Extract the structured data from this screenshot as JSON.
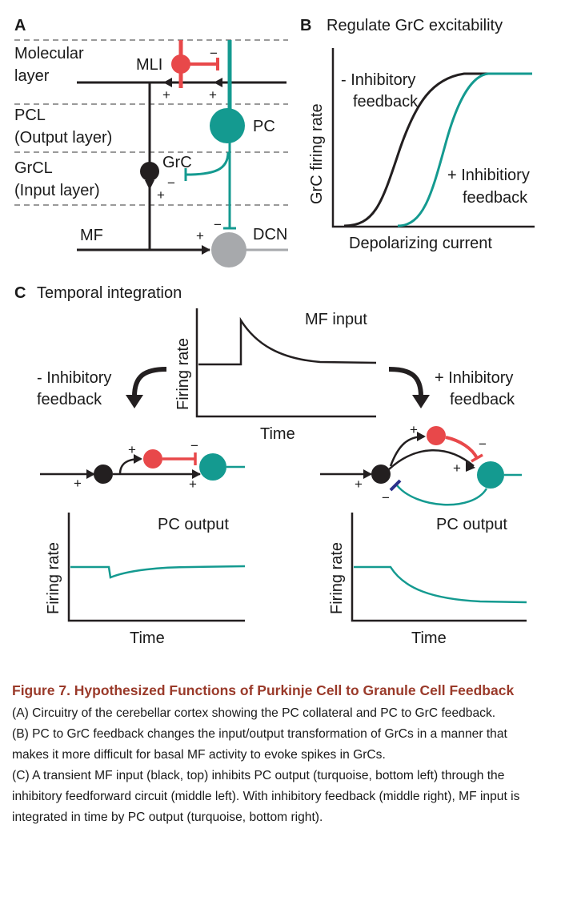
{
  "panelA": {
    "letter": "A",
    "layers": [
      "Molecular",
      "layer",
      "PCL",
      "(Output layer)",
      "GrCL",
      "(Input layer)"
    ],
    "cells": {
      "mli": "MLI",
      "pc": "PC",
      "grc": "GrC",
      "mf": "MF",
      "dcn": "DCN"
    },
    "signs": {
      "plus": "+",
      "minus": "−"
    }
  },
  "panelB": {
    "letter": "B",
    "title": "Regulate GrC excitability",
    "ylabel": "GrC firing rate",
    "xlabel": "Depolarizing current",
    "curve_minus": [
      "- Inhibitory",
      "feedback"
    ],
    "curve_plus": [
      "+ Inhibitiory",
      "feedback"
    ]
  },
  "panelC": {
    "letter": "C",
    "title": "Temporal integration",
    "mf_label": "MF input",
    "ylabel": "Firing rate",
    "xlabel": "Time",
    "left_branch": [
      "- Inhibitory",
      "feedback"
    ],
    "right_branch": [
      "+ Inhibitory",
      "feedback"
    ],
    "output_label": "PC output"
  },
  "colors": {
    "mli": "#e8484a",
    "pc": "#149a90",
    "grc": "#231f20",
    "dcn": "#a7a9ac",
    "title": "#9a3a2a",
    "feedback_synapse": "#2b2f8a"
  },
  "caption": {
    "title": "Figure 7. Hypothesized Functions of Purkinje Cell to Granule Cell Feedback",
    "a": "(A) Circuitry of the cerebellar cortex showing the PC collateral and PC to GrC feedback.",
    "b": "(B) PC to GrC feedback changes the input/output transformation of GrCs in a manner that makes it more difficult for basal MF activity to evoke spikes in GrCs.",
    "c": "(C) A transient MF input (black, top) inhibits PC output (turquoise, bottom left) through the inhibitory feedforward circuit (middle left). With inhibitory feedback (middle right), MF input is integrated in time by PC output (turquoise, bottom right)."
  }
}
